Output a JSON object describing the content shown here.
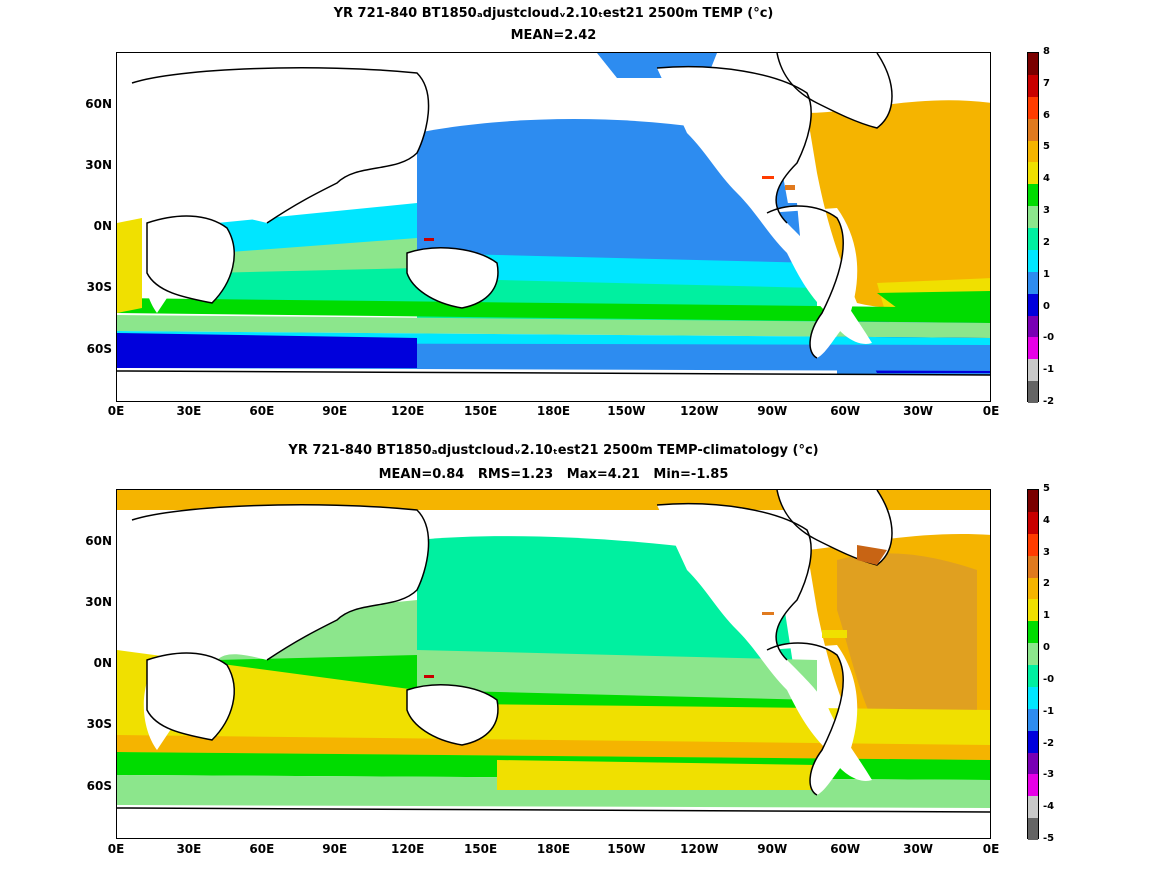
{
  "top": {
    "title_line1": "YR 721-840 BT1850ₐdjustcloudᵥ2.10ₜest21 2500m TEMP (°c)",
    "title_line2": "MEAN=2.42",
    "colorbar_labels": [
      "8",
      "7",
      "6",
      "5",
      "4",
      "3",
      "2",
      "1",
      "0",
      "-0",
      "-1",
      "-2"
    ],
    "colorbar_colors": [
      "#7a0000",
      "#c80000",
      "#ff3c00",
      "#e07a1e",
      "#f5b400",
      "#f0e000",
      "#00dc00",
      "#8ce68c",
      "#00f0a0",
      "#00e6ff",
      "#2d8cf0",
      "#0000dc",
      "#7800b4",
      "#e600e6",
      "#c8c8c8",
      "#646464"
    ]
  },
  "bottom": {
    "title_line1": "YR 721-840 BT1850ₐdjustcloudᵥ2.10ₜest21 2500m TEMP-climatology (°c)",
    "title_line2": "MEAN=0.84   RMS=1.23   Max=4.21   Min=-1.85",
    "colorbar_labels": [
      "5",
      "4",
      "3",
      "2",
      "1",
      "0",
      "-0",
      "-1",
      "-2",
      "-3",
      "-4",
      "-5"
    ],
    "colorbar_colors": [
      "#7a0000",
      "#c80000",
      "#ff3c00",
      "#e07a1e",
      "#f5b400",
      "#f0e000",
      "#00dc00",
      "#8ce68c",
      "#00f0a0",
      "#00e6ff",
      "#2d8cf0",
      "#0000dc",
      "#7800b4",
      "#e600e6",
      "#c8c8c8",
      "#646464"
    ]
  },
  "axes": {
    "lat_labels": [
      "60N",
      "30N",
      "0N",
      "30S",
      "60S"
    ],
    "lon_labels": [
      "0E",
      "30E",
      "60E",
      "90E",
      "120E",
      "150E",
      "180E",
      "150W",
      "120W",
      "90W",
      "60W",
      "30W",
      "0E"
    ]
  }
}
